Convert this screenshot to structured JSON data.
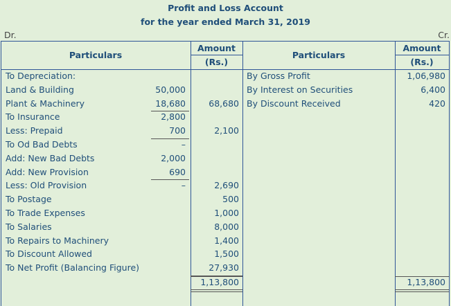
{
  "header": {
    "title": "Profit and Loss Account",
    "subtitle": "for the year ended March 31, 2019",
    "left_side": "Dr.",
    "right_side": "Cr."
  },
  "columns": {
    "left_particulars": "Particulars",
    "left_amount": [
      "Amount",
      "(Rs.)"
    ],
    "right_particulars": "Particulars",
    "right_amount": [
      "Amount",
      "(Rs.)"
    ]
  },
  "left_rows": [
    [
      "To Depreciation:",
      null,
      null
    ],
    [
      "Land & Building",
      "50,000",
      null
    ],
    [
      "Plant & Machinery",
      "18,680",
      "68,680"
    ],
    [
      "To Insurance",
      "2,800",
      null
    ],
    [
      "Less: Prepaid",
      "700",
      "2,100"
    ],
    [
      "To Od Bad Debts",
      "–",
      null
    ],
    [
      "Add: New Bad Debts",
      "2,000",
      null
    ],
    [
      "Add: New Provision",
      "690",
      null
    ],
    [
      "Less: Old Provision",
      "–",
      "2,690"
    ],
    [
      "To Postage",
      null,
      "500"
    ],
    [
      "To Trade Expenses",
      null,
      "1,000"
    ],
    [
      "To Salaries",
      null,
      "8,000"
    ],
    [
      "To Repairs to Machinery",
      null,
      "1,400"
    ],
    [
      "To Discount Allowed",
      null,
      "1,500"
    ],
    [
      "To Net Profit (Balancing Figure)",
      null,
      "27,930"
    ]
  ],
  "right_rows": [
    [
      "By Gross Profit",
      "1,06,980"
    ],
    [
      "By Interest on Securities",
      "6,400"
    ],
    [
      "By Discount Received",
      "420"
    ]
  ],
  "totals": {
    "left": "1,13,800",
    "right": "1,13,800"
  }
}
